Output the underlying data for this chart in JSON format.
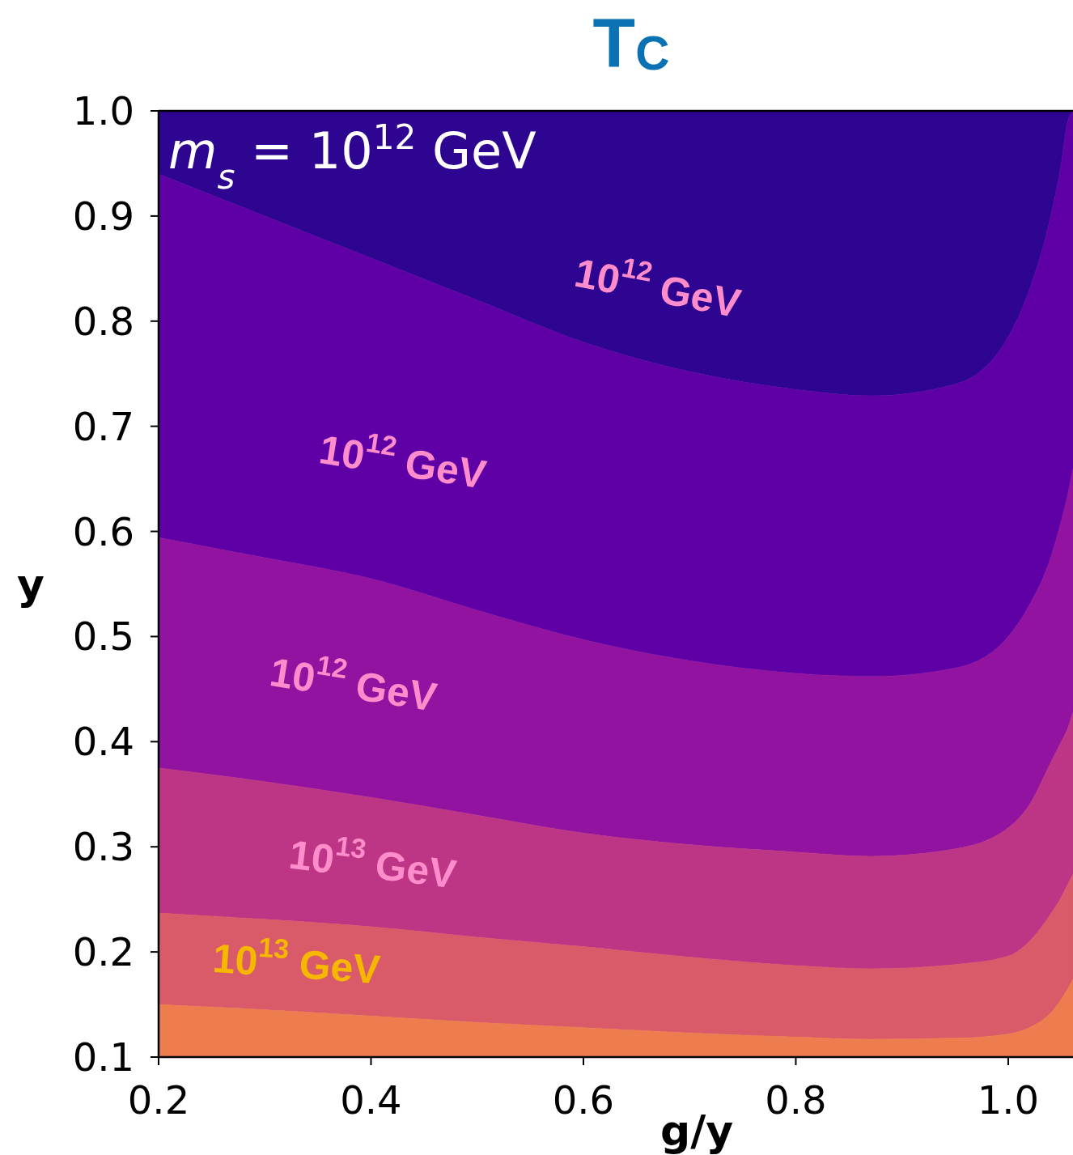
{
  "chart_data": {
    "type": "area",
    "title": "T$_{C}$",
    "xlabel": "g/y",
    "ylabel": "y",
    "xlim": [
      0.2,
      1.061
    ],
    "ylim": [
      0.1,
      1.0
    ],
    "xticks": [
      0.2,
      0.4,
      0.6,
      0.8,
      {
        "value": 1.0,
        "label": "1.0"
      }
    ],
    "yticks": [
      0.1,
      0.2,
      0.3,
      0.4,
      0.5,
      0.6,
      0.7,
      0.8,
      0.9,
      {
        "value": 1.0,
        "label": "1.0"
      }
    ],
    "grid": false,
    "x": [
      0.2,
      0.3,
      0.4,
      0.5,
      0.6,
      0.7,
      0.8,
      0.87,
      0.95,
      1.0,
      1.02,
      1.04,
      1.05,
      1.055,
      1.061
    ],
    "series": [
      {
        "color": "#2e0591",
        "values": [
          1.0,
          1.0,
          1.0,
          1.0,
          1.0,
          1.0,
          1.0,
          1.0,
          1.0,
          1.0,
          1.0,
          1.0,
          1.0,
          1.0,
          1.0
        ]
      },
      {
        "color": "#5f00a6",
        "values": [
          0.94,
          0.9,
          0.86,
          0.82,
          0.78,
          0.752,
          0.735,
          0.729,
          0.74,
          0.785,
          0.83,
          0.9,
          0.95,
          0.985,
          1.0
        ]
      },
      {
        "color": "#9213a0",
        "values": [
          0.594,
          0.575,
          0.555,
          0.525,
          0.497,
          0.477,
          0.465,
          0.462,
          0.47,
          0.5,
          0.53,
          0.575,
          0.61,
          0.63,
          0.66
        ]
      },
      {
        "color": "#bd3685",
        "values": [
          0.375,
          0.362,
          0.347,
          0.33,
          0.313,
          0.302,
          0.295,
          0.291,
          0.298,
          0.318,
          0.34,
          0.38,
          0.4,
          0.41,
          0.428
        ]
      },
      {
        "color": "#d95a69",
        "values": [
          0.237,
          0.231,
          0.224,
          0.214,
          0.205,
          0.195,
          0.187,
          0.184,
          0.188,
          0.196,
          0.21,
          0.236,
          0.252,
          0.262,
          0.274
        ]
      },
      {
        "color": "#ed7c4f",
        "values": [
          0.15,
          0.145,
          0.139,
          0.133,
          0.128,
          0.123,
          0.119,
          0.117,
          0.118,
          0.122,
          0.128,
          0.142,
          0.155,
          0.163,
          0.174
        ]
      }
    ],
    "annotations": [
      "m$_{s}$ = 10$^{12}$ GeV",
      "10$^{12}$ GeV",
      "10$^{12}$ GeV",
      "10$^{12}$ GeV",
      "10$^{13}$ GeV",
      "10$^{13}$ GeV"
    ]
  }
}
